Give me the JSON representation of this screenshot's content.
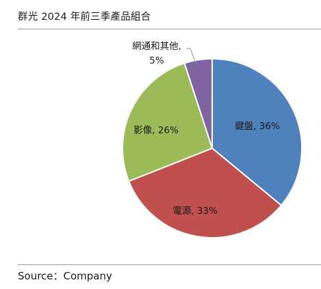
{
  "title": "群光 2024 年前三季產品組合",
  "source": "Source：Company",
  "chart_data": {
    "type": "pie",
    "title": "群光 2024 年前三季產品組合",
    "slices": [
      {
        "label": "鍵盤",
        "value": 36,
        "display": "鍵盤, 36%",
        "color": "#4f81bd"
      },
      {
        "label": "電源",
        "value": 33,
        "display": "電源, 33%",
        "color": "#c0504d"
      },
      {
        "label": "影像",
        "value": 26,
        "display": "影像, 26%",
        "color": "#9bbb59"
      },
      {
        "label": "網通和其他",
        "value": 5,
        "display_lines": [
          "網通和其他,",
          "5%"
        ],
        "color": "#8064a2"
      }
    ],
    "start_angle": "12 o'clock",
    "direction": "clockwise",
    "legend": "none",
    "labels": "data labels (category, percentage)"
  }
}
